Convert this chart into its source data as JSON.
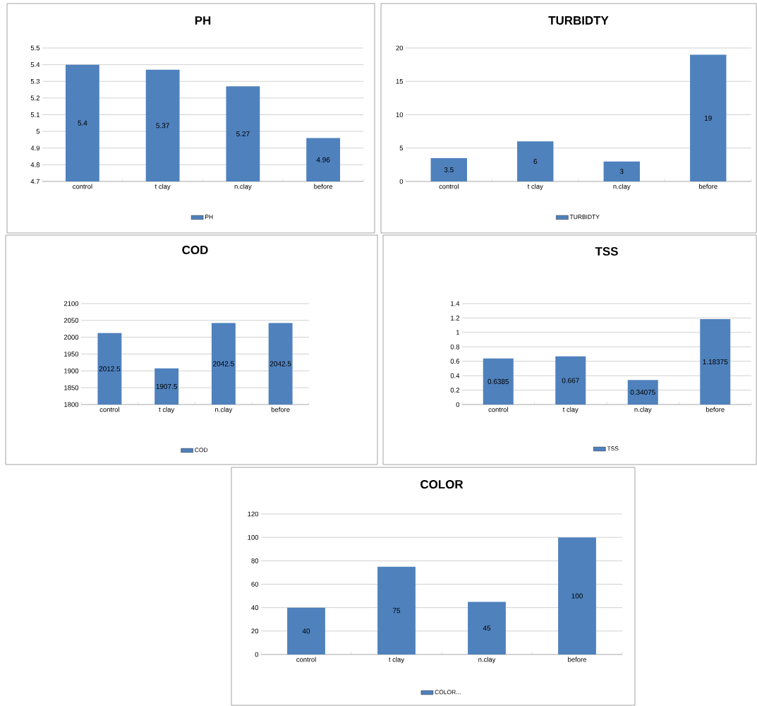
{
  "chart_data": [
    {
      "type": "bar",
      "title": "PH",
      "categories": [
        "control",
        "t clay",
        "n.clay",
        "before"
      ],
      "series": [
        {
          "name": "PH",
          "color": "#4f81bd",
          "values": [
            5.4,
            5.37,
            5.27,
            4.96
          ]
        }
      ],
      "ylim": [
        4.7,
        5.5
      ],
      "yticks": [
        4.7,
        4.8,
        4.9,
        5,
        5.1,
        5.2,
        5.3,
        5.4,
        5.5
      ],
      "grid": "y",
      "data_labels": true,
      "legend": "bottom"
    },
    {
      "type": "bar",
      "title": "TURBIDTY",
      "categories": [
        "control",
        "t clay",
        "n.clay",
        "before"
      ],
      "series": [
        {
          "name": "TURBIDTY",
          "color": "#4f81bd",
          "values": [
            3.5,
            6,
            3,
            19
          ]
        }
      ],
      "ylim": [
        0,
        20
      ],
      "yticks": [
        0,
        5,
        10,
        15,
        20
      ],
      "grid": "y",
      "data_labels": true,
      "legend": "bottom"
    },
    {
      "type": "bar",
      "title": "COD",
      "categories": [
        "control",
        "t clay",
        "n.clay",
        "before"
      ],
      "series": [
        {
          "name": "COD",
          "color": "#4f81bd",
          "values": [
            2012.5,
            1907.5,
            2042.5,
            2042.5
          ]
        }
      ],
      "ylim": [
        1800,
        2100
      ],
      "yticks": [
        1800,
        1850,
        1900,
        1950,
        2000,
        2050,
        2100
      ],
      "grid": "y",
      "data_labels": true,
      "legend": "bottom"
    },
    {
      "type": "bar",
      "title": "TSS",
      "categories": [
        "control",
        "t clay",
        "n.clay",
        "before"
      ],
      "series": [
        {
          "name": "TSS",
          "color": "#4f81bd",
          "values": [
            0.6385,
            0.667,
            0.34075,
            1.18375
          ]
        }
      ],
      "ylim": [
        0,
        1.4
      ],
      "yticks": [
        0,
        0.2,
        0.4,
        0.6,
        0.8,
        1,
        1.2,
        1.4
      ],
      "grid": "y",
      "data_labels": true,
      "legend": "bottom"
    },
    {
      "type": "bar",
      "title": "COLOR",
      "categories": [
        "control",
        "t clay",
        "n.clay",
        "before"
      ],
      "series": [
        {
          "name": "COLOR...",
          "color": "#4f81bd",
          "values": [
            40,
            75,
            45,
            100
          ]
        }
      ],
      "ylim": [
        0,
        120
      ],
      "yticks": [
        0,
        20,
        40,
        60,
        80,
        100,
        120
      ],
      "grid": "y",
      "data_labels": true,
      "legend": "bottom"
    }
  ]
}
